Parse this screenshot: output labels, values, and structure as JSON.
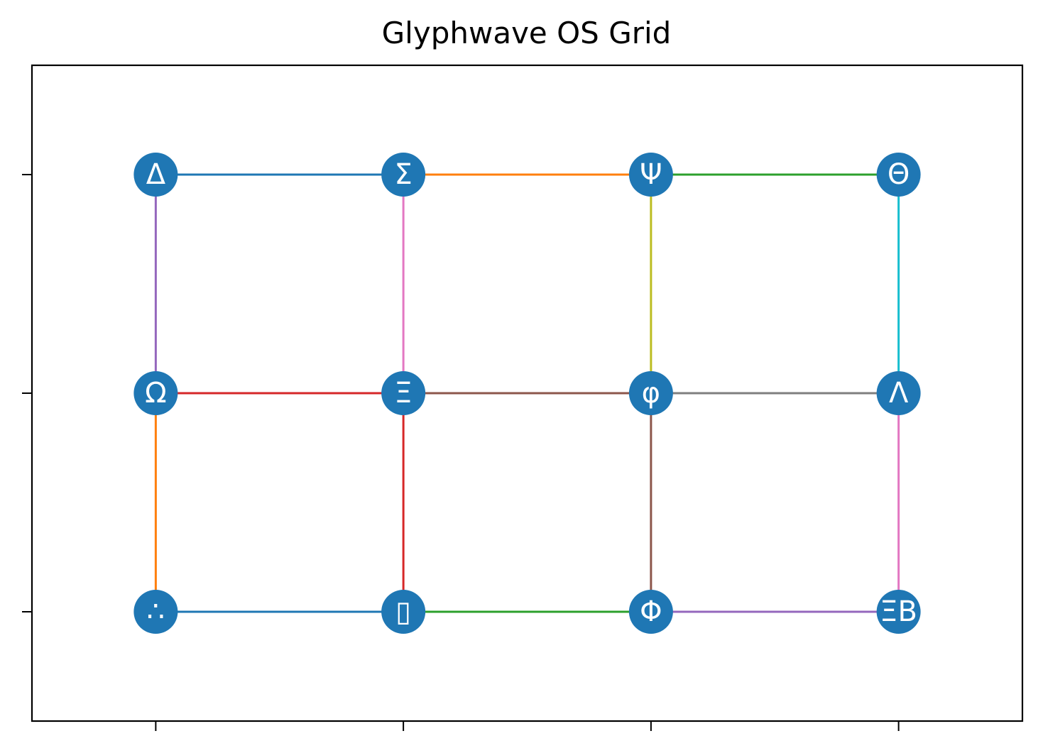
{
  "title": "Glyphwave OS Grid",
  "node_color": "#1f77b4",
  "label_color": "#ffffff",
  "xlim": [
    -0.5,
    3.5
  ],
  "ylim": [
    -0.5,
    2.5
  ],
  "xticks": [
    0,
    1,
    2,
    3
  ],
  "yticks": [
    0,
    1,
    2
  ],
  "nodes": [
    {
      "id": "n20",
      "label": "Δ",
      "col": 0,
      "row": 2
    },
    {
      "id": "n21",
      "label": "Σ",
      "col": 1,
      "row": 2
    },
    {
      "id": "n22",
      "label": "Ψ",
      "col": 2,
      "row": 2
    },
    {
      "id": "n23",
      "label": "Θ",
      "col": 3,
      "row": 2
    },
    {
      "id": "n10",
      "label": "Ω",
      "col": 0,
      "row": 1
    },
    {
      "id": "n11",
      "label": "Ξ",
      "col": 1,
      "row": 1
    },
    {
      "id": "n12",
      "label": "φ",
      "col": 2,
      "row": 1
    },
    {
      "id": "n13",
      "label": "Λ",
      "col": 3,
      "row": 1
    },
    {
      "id": "n00",
      "label": "∴",
      "col": 0,
      "row": 0
    },
    {
      "id": "n01",
      "label": "▯",
      "col": 1,
      "row": 0
    },
    {
      "id": "n02",
      "label": "Φ",
      "col": 2,
      "row": 0
    },
    {
      "id": "n03",
      "label": "ΞΒ",
      "col": 3,
      "row": 0
    }
  ],
  "edges": [
    {
      "from": "n00",
      "to": "n01",
      "color": "#1f77b4"
    },
    {
      "from": "n10",
      "to": "n00",
      "color": "#ff7f0e"
    },
    {
      "from": "n01",
      "to": "n02",
      "color": "#2ca02c"
    },
    {
      "from": "n11",
      "to": "n01",
      "color": "#d62728"
    },
    {
      "from": "n10",
      "to": "n11",
      "color": "#d62728"
    },
    {
      "from": "n02",
      "to": "n03",
      "color": "#9467bd"
    },
    {
      "from": "n12",
      "to": "n02",
      "color": "#8c564b"
    },
    {
      "from": "n11",
      "to": "n12",
      "color": "#8c564b"
    },
    {
      "from": "n03",
      "to": "n13",
      "color": "#e377c2"
    },
    {
      "from": "n12",
      "to": "n13",
      "color": "#7f7f7f"
    },
    {
      "from": "n22",
      "to": "n12",
      "color": "#bcbd22"
    },
    {
      "from": "n23",
      "to": "n13",
      "color": "#17becf"
    },
    {
      "from": "n20",
      "to": "n21",
      "color": "#1f77b4"
    },
    {
      "from": "n21",
      "to": "n22",
      "color": "#ff7f0e"
    },
    {
      "from": "n22",
      "to": "n23",
      "color": "#2ca02c"
    },
    {
      "from": "n20",
      "to": "n10",
      "color": "#9467bd"
    },
    {
      "from": "n21",
      "to": "n11",
      "color": "#e377c2"
    }
  ]
}
